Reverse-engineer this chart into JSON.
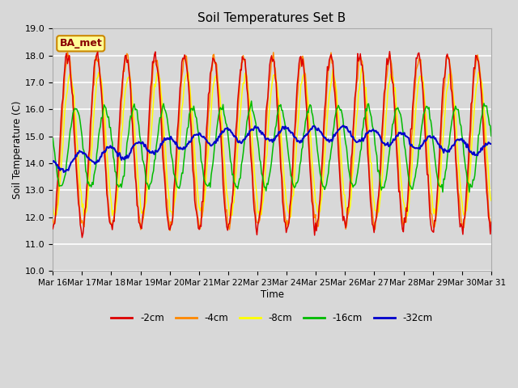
{
  "title": "Soil Temperatures Set B",
  "xlabel": "Time",
  "ylabel": "Soil Temperature (C)",
  "ylim": [
    10.0,
    19.0
  ],
  "yticks": [
    10.0,
    11.0,
    12.0,
    13.0,
    14.0,
    15.0,
    16.0,
    17.0,
    18.0,
    19.0
  ],
  "background_color": "#d8d8d8",
  "plot_bg_color": "#d8d8d8",
  "grid_color": "white",
  "annotation_text": "BA_met",
  "annotation_bg": "#ffff99",
  "annotation_border": "#cc8800",
  "annotation_text_color": "#880000",
  "series_colors": {
    "-2cm": "#dd0000",
    "-4cm": "#ff8800",
    "-8cm": "#ffff00",
    "-16cm": "#00bb00",
    "-32cm": "#0000cc"
  },
  "legend_labels": [
    "-2cm",
    "-4cm",
    "-8cm",
    "-16cm",
    "-32cm"
  ],
  "xtick_labels": [
    "Mar 16",
    "Mar 17",
    "Mar 18",
    "Mar 19",
    "Mar 20",
    "Mar 21",
    "Mar 22",
    "Mar 23",
    "Mar 24",
    "Mar 25",
    "Mar 26",
    "Mar 27",
    "Mar 28",
    "Mar 29",
    "Mar 30",
    "Mar 31"
  ],
  "num_points": 480,
  "figwidth": 6.4,
  "figheight": 4.8,
  "dpi": 100
}
